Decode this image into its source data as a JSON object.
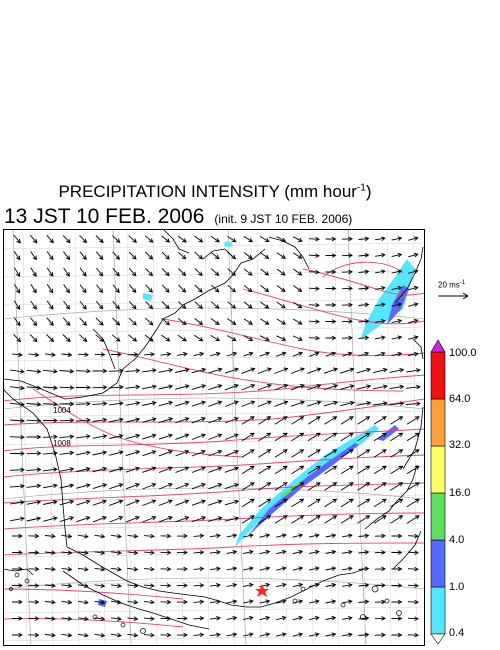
{
  "title": {
    "text": "PRECIPITATION INTENSITY (mm hour",
    "sup": "-1",
    "close": ")"
  },
  "subtitle": {
    "time": "13 JST 10 FEB. 2006",
    "init": "(init. 9 JST 10 FEB. 2006)"
  },
  "wind_reference": {
    "text": "20 ms",
    "sup": "-1"
  },
  "pressure_labels": [
    "1004",
    "1008"
  ],
  "marker": {
    "name": "star",
    "color": "#ff2222"
  },
  "colorscale": {
    "levels": [
      "0.4",
      "1.0",
      "4.0",
      "16.0",
      "32.0",
      "64.0",
      "100.0"
    ],
    "colors": [
      "#55e6ff",
      "#5868ff",
      "#5ee05e",
      "#ffff66",
      "#ffa040",
      "#ee1111"
    ],
    "over_color": "#cc22ee",
    "under_color": "#ffffff"
  },
  "colors": {
    "isobar": "#e2457d",
    "coast": "#000000",
    "grid": "#9a9a9a"
  }
}
